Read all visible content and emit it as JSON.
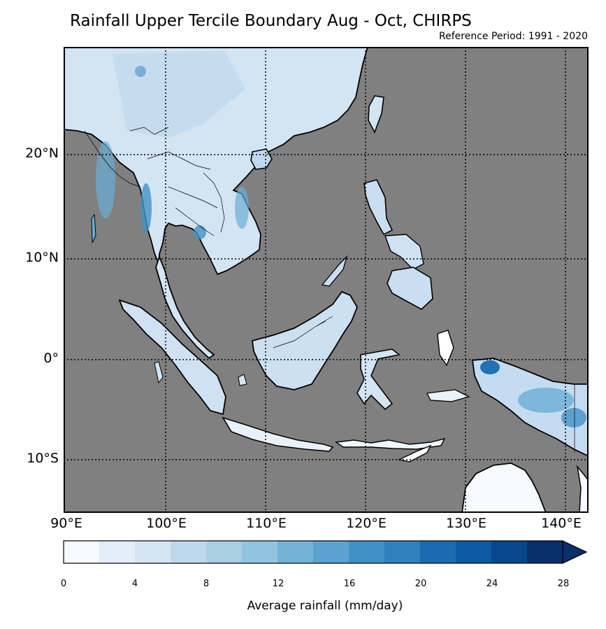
{
  "title": "Rainfall Upper Tercile Boundary Aug - Oct, CHIRPS",
  "subtitle": "Reference Period: 1991 - 2020",
  "map": {
    "ocean_color": "#808080",
    "coast_color": "#000000",
    "lat_labels": [
      "20°N",
      "10°N",
      "0°",
      "10°S"
    ],
    "lon_labels": [
      "90°E",
      "100°E",
      "110°E",
      "120°E",
      "130°E",
      "140°E"
    ]
  },
  "colorbar": {
    "title": "Average rainfall (mm/day)",
    "ticks": [
      "0",
      "4",
      "8",
      "12",
      "16",
      "20",
      "24",
      "28"
    ],
    "levels": [
      0,
      2,
      4,
      6,
      8,
      10,
      12,
      14,
      16,
      18,
      20,
      22,
      24,
      26,
      28
    ],
    "colors": [
      "#f7fbff",
      "#e3eef9",
      "#d5e5f4",
      "#c0d8ed",
      "#a9cfe5",
      "#93c4df",
      "#74b2d8",
      "#5ba2d0",
      "#4090c5",
      "#3080bd",
      "#1c6bb0",
      "#0d59a3",
      "#09478d",
      "#08306b"
    ],
    "extend": "max"
  }
}
